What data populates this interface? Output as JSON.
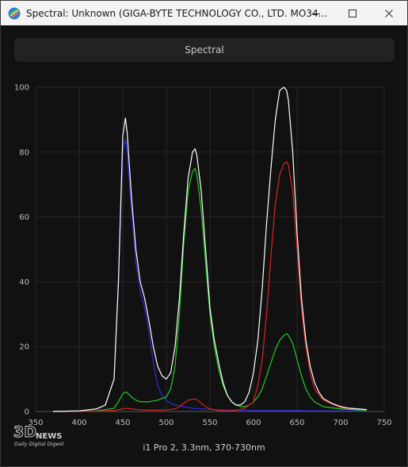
{
  "window": {
    "title": "Spectral: Unknown (GIGA-BYTE TECHNOLOGY CO., LTD. MO34...",
    "controls": [
      "minimize",
      "maximize",
      "close"
    ]
  },
  "tab": {
    "label": "Spectral"
  },
  "caption": "i1 Pro 2, 3.3nm, 370-730nm",
  "watermark": {
    "logo": "3D",
    "news": "NEWS",
    "tagline": "Daily Digital Digest"
  },
  "chart_data": {
    "type": "line",
    "title": "",
    "xlabel": "",
    "ylabel": "",
    "xlim": [
      350,
      750
    ],
    "ylim": [
      0,
      100
    ],
    "x_ticks": [
      350,
      400,
      450,
      500,
      550,
      600,
      650,
      700,
      750
    ],
    "y_ticks": [
      0,
      20,
      40,
      60,
      80,
      100
    ],
    "grid": true,
    "legend": "none",
    "series": [
      {
        "color": "#ffffff",
        "x": [
          370,
          400,
          420,
          430,
          440,
          445,
          450,
          453,
          455,
          460,
          465,
          470,
          475,
          480,
          485,
          490,
          495,
          500,
          505,
          510,
          515,
          520,
          525,
          530,
          533,
          535,
          540,
          545,
          550,
          555,
          560,
          565,
          570,
          575,
          580,
          585,
          590,
          595,
          600,
          605,
          610,
          615,
          620,
          625,
          630,
          635,
          638,
          640,
          645,
          650,
          655,
          660,
          665,
          670,
          675,
          680,
          690,
          700,
          710,
          720,
          730
        ],
        "y": [
          0,
          0.2,
          0.8,
          2,
          10,
          40,
          85,
          90.5,
          86,
          66,
          50,
          40,
          35,
          28,
          20,
          14,
          11,
          10,
          12,
          20,
          35,
          55,
          72,
          80,
          81,
          79,
          68,
          50,
          32,
          22,
          15,
          9,
          5,
          3,
          2,
          2,
          3,
          6,
          12,
          22,
          38,
          58,
          75,
          90,
          99,
          100,
          99,
          96,
          80,
          55,
          35,
          22,
          14,
          9,
          6,
          4,
          2.5,
          1.5,
          1,
          0.8,
          0.6
        ]
      },
      {
        "color": "#2b2bdd",
        "x": [
          370,
          400,
          420,
          430,
          440,
          445,
          450,
          453,
          455,
          460,
          465,
          470,
          475,
          480,
          485,
          490,
          495,
          500,
          505,
          510,
          520,
          530,
          540,
          560,
          600,
          650,
          700,
          730
        ],
        "y": [
          0,
          0.2,
          0.8,
          2,
          10,
          40,
          80,
          84,
          80,
          62,
          46,
          37,
          32,
          25,
          15,
          8,
          5,
          3.5,
          2.5,
          2,
          1.5,
          1,
          0.8,
          0.5,
          0.3,
          0.3,
          0.2,
          0.1
        ]
      },
      {
        "color": "#22cc22",
        "x": [
          370,
          420,
          440,
          445,
          450,
          453,
          455,
          460,
          465,
          470,
          475,
          480,
          490,
          500,
          505,
          510,
          515,
          520,
          525,
          530,
          533,
          535,
          540,
          545,
          550,
          555,
          560,
          565,
          570,
          575,
          580,
          585,
          590,
          595,
          600,
          605,
          610,
          615,
          620,
          625,
          630,
          635,
          638,
          640,
          645,
          650,
          655,
          660,
          665,
          670,
          680,
          700,
          730
        ],
        "y": [
          0,
          0.2,
          1,
          3,
          5.5,
          6,
          5.8,
          4.5,
          3.5,
          3,
          3,
          3,
          3.5,
          4.5,
          7,
          14,
          30,
          52,
          68,
          74,
          75,
          73,
          62,
          46,
          30,
          20,
          13,
          8,
          5,
          3,
          2,
          1.5,
          1.5,
          2,
          3,
          4.5,
          7,
          11,
          15,
          19,
          22,
          23.5,
          24,
          23.5,
          21,
          16,
          11,
          7,
          4.5,
          3,
          1.5,
          0.8,
          0.3
        ]
      },
      {
        "color": "#dd2222",
        "x": [
          370,
          420,
          440,
          450,
          453,
          460,
          470,
          480,
          490,
          500,
          510,
          515,
          520,
          525,
          530,
          533,
          536,
          540,
          545,
          550,
          560,
          570,
          580,
          590,
          600,
          605,
          610,
          615,
          620,
          625,
          630,
          635,
          638,
          640,
          645,
          650,
          655,
          660,
          665,
          670,
          680,
          700,
          730
        ],
        "y": [
          0,
          0.1,
          0.3,
          0.8,
          1,
          0.8,
          0.5,
          0.4,
          0.4,
          0.5,
          0.8,
          1.5,
          2.5,
          3.5,
          3.8,
          3.8,
          3.5,
          2.5,
          1.5,
          0.8,
          0.3,
          0.2,
          0.3,
          1,
          3,
          8,
          16,
          30,
          48,
          64,
          73,
          76.5,
          77,
          76,
          68,
          50,
          32,
          20,
          12,
          7,
          3.5,
          1.2,
          0.5
        ]
      }
    ]
  }
}
